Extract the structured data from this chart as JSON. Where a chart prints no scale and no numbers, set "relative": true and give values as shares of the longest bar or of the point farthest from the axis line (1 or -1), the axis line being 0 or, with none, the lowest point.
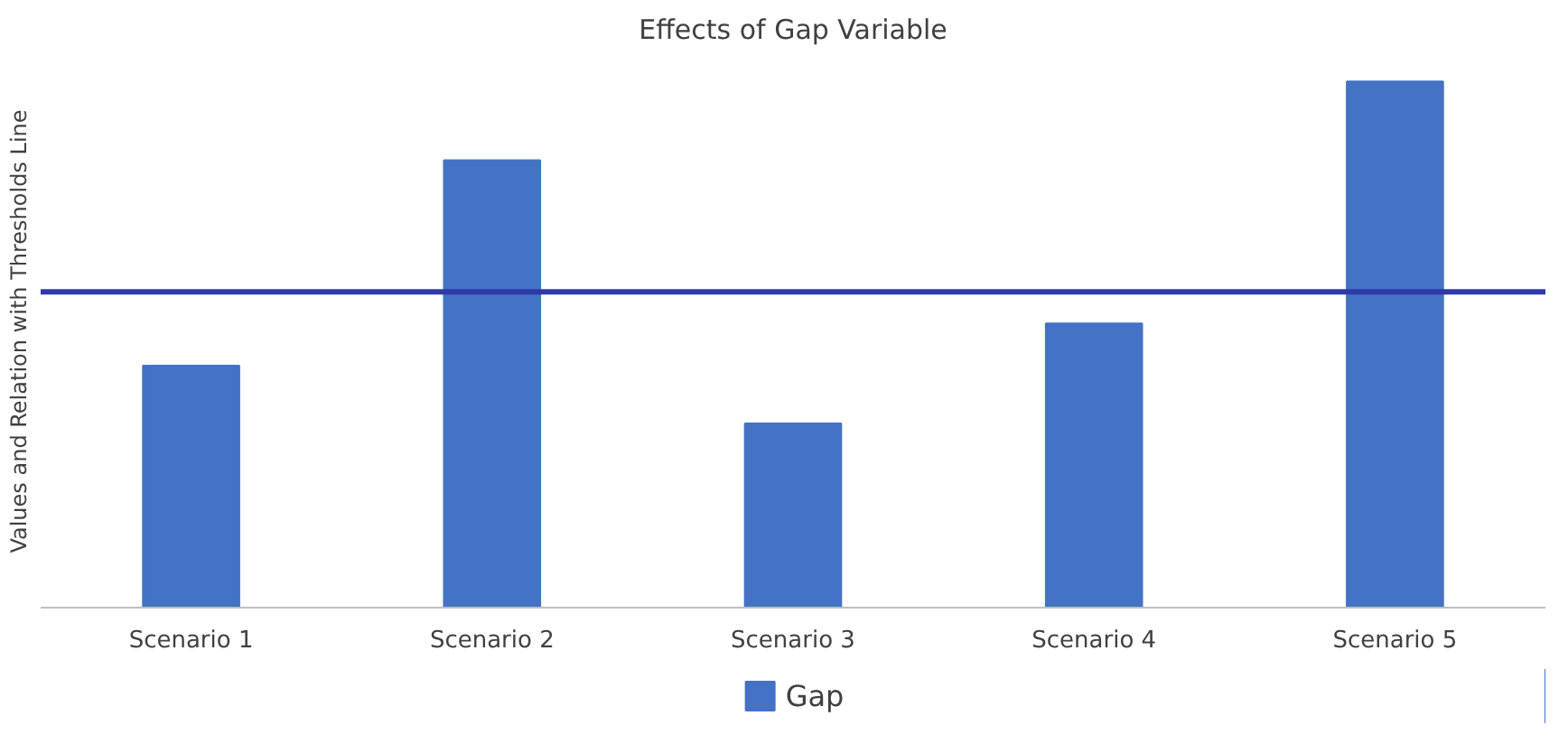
{
  "chart_data": {
    "type": "bar",
    "title": "Effects of Gap Variable",
    "ylabel": "Values and Relation with Thresholds Line",
    "categories": [
      "Scenario 1",
      "Scenario 2",
      "Scenario 3",
      "Scenario 4",
      "Scenario 5"
    ],
    "series": [
      {
        "name": "Gap",
        "color": "#4472c4",
        "values": [
          0.46,
          0.85,
          0.35,
          0.54,
          1.0
        ]
      }
    ],
    "relative": true,
    "ref_lines": [
      {
        "axis": "y",
        "value": 0.6,
        "label": null,
        "color": "#2e3aa8"
      }
    ],
    "legend": "bottom"
  }
}
